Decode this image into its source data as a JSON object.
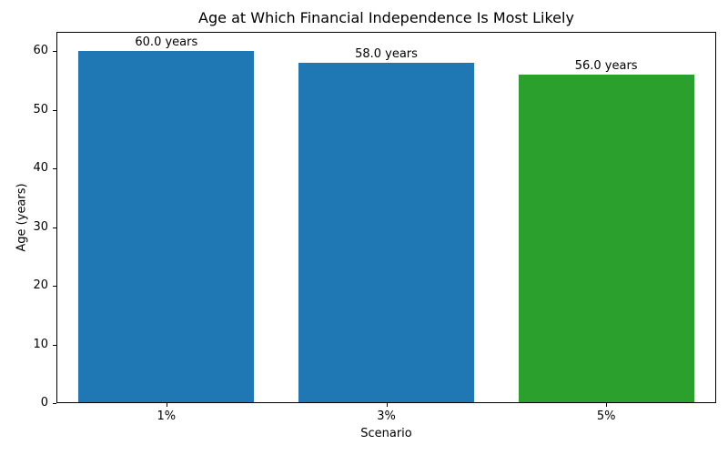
{
  "chart_data": {
    "type": "bar",
    "title": "Age at Which Financial Independence Is Most Likely",
    "xlabel": "Scenario",
    "ylabel": "Age (years)",
    "categories": [
      "1%",
      "3%",
      "5%"
    ],
    "values": [
      60.0,
      58.0,
      56.0
    ],
    "bar_labels": [
      "60.0 years",
      "58.0 years",
      "56.0 years"
    ],
    "bar_colors": [
      "#1f77b4",
      "#1f77b4",
      "#2ca02c"
    ],
    "yticks": [
      0,
      10,
      20,
      30,
      40,
      50,
      60
    ],
    "ylim": [
      0,
      63.3
    ],
    "bar_width_fraction": 0.8,
    "grid": false,
    "legend_position": "none",
    "spine_color": "#000000",
    "background_color": "#ffffff"
  }
}
